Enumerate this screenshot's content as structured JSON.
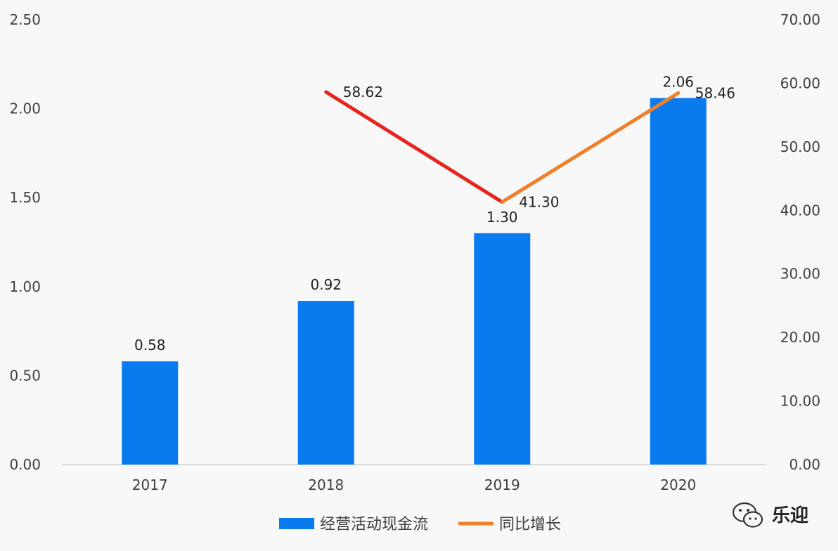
{
  "chart_data": {
    "type": "bar",
    "categories": [
      "2017",
      "2018",
      "2019",
      "2020"
    ],
    "series": [
      {
        "name": "经营活动现金流",
        "type": "bar",
        "axis": "left",
        "values": [
          0.58,
          0.92,
          1.3,
          2.06
        ],
        "labels": [
          "0.58",
          "0.92",
          "1.30",
          "2.06"
        ],
        "color": "#0a7bef"
      },
      {
        "name": "同比增长",
        "type": "line",
        "axis": "right",
        "values": [
          null,
          58.62,
          41.3,
          58.46
        ],
        "labels": [
          "",
          "58.62",
          "41.30",
          "58.46"
        ],
        "color": "#f07f2a",
        "segment_colors": [
          "#e8231b",
          "#f07f2a"
        ]
      }
    ],
    "y_left": {
      "ylim": [
        0,
        2.5
      ],
      "ticks": [
        "0.00",
        "0.50",
        "1.00",
        "1.50",
        "2.00",
        "2.50"
      ]
    },
    "y_right": {
      "ylim": [
        0,
        70
      ],
      "ticks": [
        "0.00",
        "10.00",
        "20.00",
        "30.00",
        "40.00",
        "50.00",
        "60.00",
        "70.00"
      ]
    },
    "legend": {
      "placement": "bottom",
      "items": [
        "经营活动现金流",
        "同比增长"
      ]
    },
    "grid": false
  },
  "watermark": {
    "text": "乐迎",
    "icon": "wechat-icon"
  }
}
